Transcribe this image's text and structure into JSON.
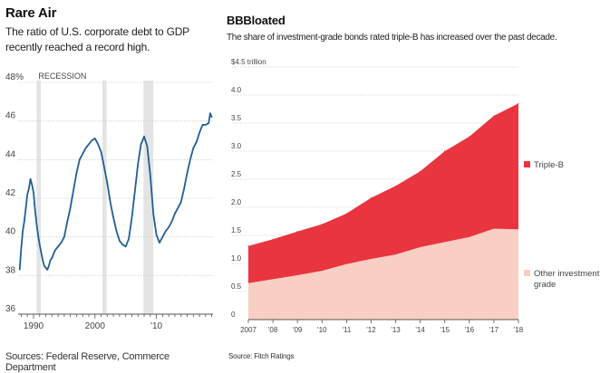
{
  "left": {
    "title": "Rare Air",
    "subtitle": "The ratio of U.S. corporate debt to GDP recently reached a record high.",
    "source": "Sources: Federal Reserve, Commerce Department",
    "chart_data": {
      "type": "line",
      "ylim": [
        36,
        48
      ],
      "xlim": [
        1987.5,
        2019.2
      ],
      "y_ticks": [
        {
          "value": 36,
          "label": "36"
        },
        {
          "value": 38,
          "label": "38"
        },
        {
          "value": 40,
          "label": "40"
        },
        {
          "value": 42,
          "label": "42"
        },
        {
          "value": 44,
          "label": "44"
        },
        {
          "value": 46,
          "label": "46"
        },
        {
          "value": 48,
          "label": "48%"
        }
      ],
      "x_ticks": [
        {
          "value": 1990,
          "label": "1990"
        },
        {
          "value": 2000,
          "label": "2000"
        },
        {
          "value": 2010,
          "label": "'10"
        }
      ],
      "recession_label": "RECESSION",
      "recessions": [
        [
          1990.5,
          1991.2
        ],
        [
          2001.2,
          2001.9
        ],
        [
          2007.9,
          2009.5
        ]
      ],
      "grid": true,
      "line_color": "#1f5f96",
      "recession_color": "#e4e4e4",
      "series": [
        {
          "x": [
            1987.75,
            1988.0,
            1988.25,
            1988.5,
            1988.75,
            1989.0,
            1989.25,
            1989.5,
            1989.75,
            1990.0,
            1990.25,
            1990.5,
            1990.75,
            1991.0,
            1991.25,
            1991.5,
            1991.75,
            1992.0,
            1992.25,
            1992.5,
            1992.75,
            1993.0,
            1993.5,
            1994.0,
            1994.5,
            1995.0,
            1995.5,
            1996.0,
            1996.5,
            1997.0,
            1997.5,
            1998.0,
            1998.5,
            1999.0,
            1999.5,
            2000.0,
            2000.5,
            2001.0,
            2001.5,
            2002.0,
            2002.5,
            2003.0,
            2003.5,
            2004.0,
            2004.5,
            2005.0,
            2005.5,
            2006.0,
            2006.5,
            2007.0,
            2007.5,
            2008.0,
            2008.5,
            2009.0,
            2009.5,
            2010.0,
            2010.5,
            2011.0,
            2011.5,
            2012.0,
            2012.5,
            2013.0,
            2013.5,
            2014.0,
            2014.5,
            2015.0,
            2015.5,
            2016.0,
            2016.5,
            2017.0,
            2017.5,
            2018.0,
            2018.5,
            2018.75,
            2019.0
          ],
          "y": [
            38.3,
            39.4,
            40.3,
            40.8,
            41.5,
            42.2,
            42.5,
            43.0,
            42.7,
            42.3,
            41.4,
            40.7,
            40.1,
            39.6,
            39.2,
            38.8,
            38.5,
            38.4,
            38.3,
            38.5,
            38.8,
            38.9,
            39.3,
            39.5,
            39.7,
            40.0,
            40.8,
            41.5,
            42.4,
            43.3,
            44.0,
            44.3,
            44.6,
            44.8,
            45.0,
            45.1,
            44.8,
            44.4,
            43.6,
            42.8,
            41.8,
            41.0,
            40.3,
            39.8,
            39.6,
            39.5,
            39.9,
            41.0,
            42.4,
            43.8,
            44.8,
            45.2,
            44.7,
            43.2,
            41.2,
            40.1,
            39.7,
            40.0,
            40.3,
            40.5,
            40.8,
            41.2,
            41.5,
            41.8,
            42.5,
            43.3,
            44.0,
            44.6,
            44.9,
            45.4,
            45.8,
            45.8,
            45.9,
            46.4,
            46.2
          ]
        }
      ]
    }
  },
  "right": {
    "title": "BBBloated",
    "subtitle": "The share of investment-grade bonds rated triple-B has increased over the past decade.",
    "source": "Source: Fitch Ratings",
    "chart_data": {
      "type": "area",
      "stacked": true,
      "categories": [
        "2007",
        "'08",
        "'09",
        "'10",
        "'11",
        "'12",
        "'13",
        "'14",
        "'15",
        "'16",
        "'17",
        "'18"
      ],
      "ylim": [
        0,
        4.5
      ],
      "y_ticks": [
        {
          "value": 0,
          "label": "0"
        },
        {
          "value": 0.5,
          "label": "0.5"
        },
        {
          "value": 1.0,
          "label": "1.0"
        },
        {
          "value": 1.5,
          "label": "1.5"
        },
        {
          "value": 2.0,
          "label": "2.0"
        },
        {
          "value": 2.5,
          "label": "2.5"
        },
        {
          "value": 3.0,
          "label": "3.0"
        },
        {
          "value": 3.5,
          "label": "3.5"
        },
        {
          "value": 4.0,
          "label": "4.0"
        },
        {
          "value": 4.5,
          "label": "$4.5 trillion"
        }
      ],
      "grid": true,
      "legend_position": "right",
      "series": [
        {
          "name": "Other investment grade",
          "color": "#f8cfc2",
          "values": [
            0.65,
            0.72,
            0.79,
            0.87,
            0.99,
            1.08,
            1.16,
            1.29,
            1.38,
            1.47,
            1.62,
            1.61
          ]
        },
        {
          "name": "Triple-B",
          "color": "#e8353f",
          "values": [
            0.66,
            0.71,
            0.78,
            0.83,
            0.9,
            1.09,
            1.22,
            1.35,
            1.62,
            1.79,
            2.01,
            2.24
          ]
        }
      ]
    }
  }
}
